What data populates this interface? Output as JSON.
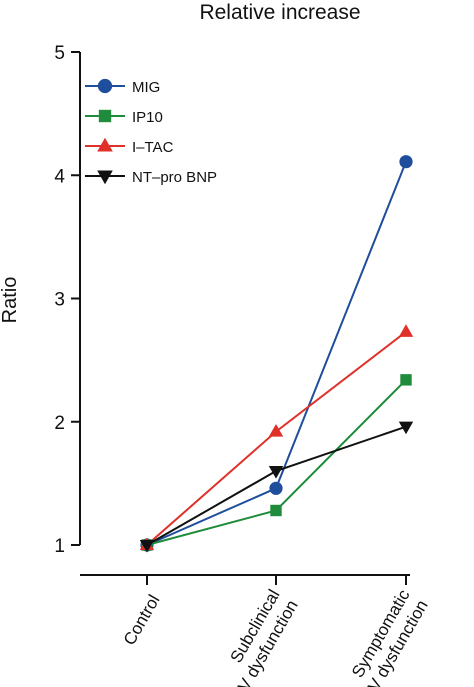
{
  "chart_data": {
    "type": "line",
    "title": "Relative increase",
    "ylabel": "Ratio",
    "xlabel": "",
    "ylim": [
      1,
      5
    ],
    "yticks": [
      1,
      2,
      3,
      4,
      5
    ],
    "categories": [
      [
        "Control"
      ],
      [
        "Subclinical",
        "LV dysfunction"
      ],
      [
        "Symptomatic",
        "LV dysfunction"
      ]
    ],
    "legend_position": "top-left",
    "grid": false,
    "series": [
      {
        "name": "MIG",
        "marker": "circle",
        "color": "#1f4e9c",
        "values": [
          1.0,
          1.46,
          4.11
        ]
      },
      {
        "name": "IP10",
        "marker": "square",
        "color": "#1e8c3a",
        "values": [
          1.0,
          1.28,
          2.34
        ]
      },
      {
        "name": "I–TAC",
        "marker": "triangle-up",
        "color": "#e0302a",
        "values": [
          1.0,
          1.92,
          2.73
        ]
      },
      {
        "name": "NT–pro BNP",
        "marker": "triangle-down",
        "color": "#111111",
        "values": [
          1.0,
          1.6,
          1.96
        ]
      }
    ]
  }
}
